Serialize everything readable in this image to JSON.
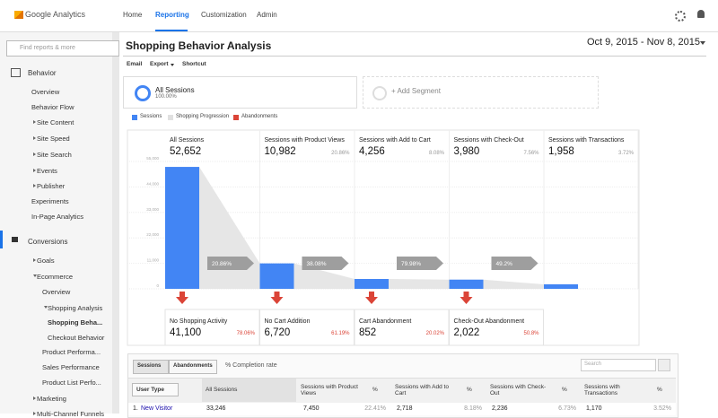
{
  "header": {
    "product": "Google Analytics",
    "nav": [
      "Home",
      "Reporting",
      "Customization",
      "Admin"
    ],
    "active_nav": 1
  },
  "sidebar": {
    "search_placeholder": "Find reports & more",
    "items": [
      {
        "label": "Behavior",
        "level": 0,
        "icon": "page"
      },
      {
        "label": "Overview",
        "level": 1
      },
      {
        "label": "Behavior Flow",
        "level": 1
      },
      {
        "label": "Site Content",
        "level": 1,
        "arrow": "right"
      },
      {
        "label": "Site Speed",
        "level": 1,
        "arrow": "right"
      },
      {
        "label": "Site Search",
        "level": 1,
        "arrow": "right"
      },
      {
        "label": "Events",
        "level": 1,
        "arrow": "right"
      },
      {
        "label": "Publisher",
        "level": 1,
        "arrow": "right"
      },
      {
        "label": "Experiments",
        "level": 1
      },
      {
        "label": "In-Page Analytics",
        "level": 1
      },
      {
        "label": "Conversions",
        "level": 0,
        "icon": "flag",
        "active": true
      },
      {
        "label": "Goals",
        "level": 1,
        "arrow": "right"
      },
      {
        "label": "Ecommerce",
        "level": 1,
        "arrow": "down"
      },
      {
        "label": "Overview",
        "level": 2
      },
      {
        "label": "Shopping Analysis",
        "level": 2,
        "arrow": "down"
      },
      {
        "label": "Shopping Beha...",
        "level": 3,
        "active": true
      },
      {
        "label": "Checkout Behavior",
        "level": 3
      },
      {
        "label": "Product Performa...",
        "level": 2
      },
      {
        "label": "Sales Performance",
        "level": 2
      },
      {
        "label": "Product List Perfo...",
        "level": 2
      },
      {
        "label": "Marketing",
        "level": 1,
        "arrow": "right"
      },
      {
        "label": "Multi-Channel Funnels",
        "level": 1,
        "arrow": "right"
      }
    ]
  },
  "report": {
    "title": "Shopping Behavior Analysis",
    "date_range": "Oct 9, 2015 - Nov 8, 2015",
    "toolbar": [
      "Email",
      "Export",
      "Shortcut"
    ]
  },
  "segments": {
    "name": "All Sessions",
    "share": "100.00%",
    "add": "+ Add Segment"
  },
  "legend": [
    {
      "name": "Sessions",
      "color": "#4285f4"
    },
    {
      "name": "Shopping Progression",
      "color": "#e0e0e0"
    },
    {
      "name": "Abandonments",
      "color": "#db4437"
    }
  ],
  "chart_data": {
    "type": "bar",
    "categories": [
      "All Sessions",
      "Sessions with Product Views",
      "Sessions with Add to Cart",
      "Sessions with Check-Out",
      "Sessions with Transactions"
    ],
    "values": [
      52652,
      10982,
      4256,
      3980,
      1958
    ],
    "value_labels": [
      "52,652",
      "10,982",
      "4,256",
      "3,980",
      "1,958"
    ],
    "share_labels": [
      null,
      "20.86%",
      "8.08%",
      "7.56%",
      "3.72%"
    ],
    "progression_labels": [
      "20.86%",
      "38.08%",
      "79.98%",
      "49.2%"
    ],
    "color": "#4285f4",
    "progression_color": "#e6e6e6",
    "abandon_color": "#db4437",
    "ylim": [
      0,
      55000
    ],
    "yticks": [
      0,
      {
        "value": 11000,
        "label": "11,000"
      },
      {
        "value": 22000,
        "label": "22,000"
      },
      {
        "value": 33000,
        "label": "33,000"
      },
      {
        "value": 44000,
        "label": "44,000"
      },
      {
        "value": 55000,
        "label": "55,000"
      }
    ],
    "grid": true
  },
  "abandonments": [
    {
      "name": "No Shopping Activity",
      "value": "41,100",
      "share": "78.06%"
    },
    {
      "name": "No Cart Addition",
      "value": "6,720",
      "share": "61.19%"
    },
    {
      "name": "Cart Abandonment",
      "value": "852",
      "share": "20.02%"
    },
    {
      "name": "Check-Out Abandonment",
      "value": "2,022",
      "share": "50.8%"
    }
  ],
  "table": {
    "tabs": [
      "Sessions",
      "Abandonments"
    ],
    "option": "% Completion rate",
    "search_placeholder": "Search",
    "headers": [
      "User Type",
      "All Sessions",
      "Sessions with Product Views",
      "%",
      "Sessions with Add to Cart",
      "%",
      "Sessions with Check-Out",
      "%",
      "Sessions with Transactions",
      "%"
    ],
    "rows": [
      [
        "1.",
        "New Visitor",
        "33,246",
        "7,450",
        "22.41%",
        "2,718",
        "8.18%",
        "2,236",
        "6.73%",
        "1,170",
        "3.52%"
      ]
    ]
  }
}
